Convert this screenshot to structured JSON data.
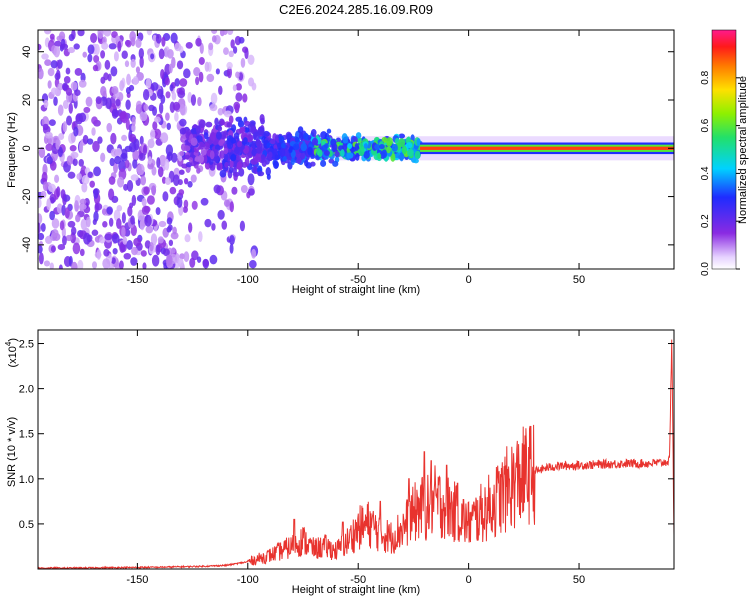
{
  "figure": {
    "title": "C2E6.2024.285.16.09.R09"
  },
  "colors": {
    "line": "#e8332e",
    "background": "#ffffff",
    "axis": "#000000"
  },
  "chart_data": [
    {
      "type": "heatmap",
      "xlabel": "Height of straight line (km)",
      "ylabel": "Frequency (Hz)",
      "xlim": [
        -195,
        93
      ],
      "ylim": [
        -50,
        49
      ],
      "x_ticks": [
        -150,
        -100,
        -50,
        0,
        50
      ],
      "y_ticks": [
        -40,
        -20,
        0,
        20,
        40
      ],
      "x_tick_labels": [
        "-150",
        "-100",
        "-50",
        "0",
        "50"
      ],
      "y_tick_labels": [
        "-40",
        "-20",
        "0",
        "20",
        "40"
      ],
      "colorbar": {
        "label": "Normalized spectral amplitude",
        "range": [
          0,
          1
        ],
        "ticks": [
          0.0,
          0.2,
          0.4,
          0.6,
          0.8
        ],
        "tick_labels": [
          "0.0",
          "0.2",
          "0.4",
          "0.6",
          "0.8"
        ],
        "colormap": "rainbow (white-violet-blue-cyan-green-yellow-orange-red-magenta)"
      },
      "regions": [
        {
          "x_range": [
            -195,
            -97
          ],
          "freq_spread": 50,
          "amplitude": 0.05,
          "description": "scattered noise"
        },
        {
          "x_range": [
            -130,
            -22
          ],
          "freq_spread": 8,
          "amplitude": 0.3,
          "description": "transition"
        },
        {
          "x_range": [
            -22,
            93
          ],
          "freq_center": 0,
          "freq_halfwidth": 1.5,
          "amplitude": 0.9,
          "description": "stable carrier"
        }
      ],
      "grid": false
    },
    {
      "type": "line",
      "xlabel": "Height of straight line (km)",
      "ylabel": "SNR (10 * v/v)",
      "y_multiplier_label": "(x10",
      "y_multiplier_exponent": "4",
      "xlim": [
        -195,
        93
      ],
      "ylim": [
        0,
        2.65
      ],
      "x_ticks": [
        -150,
        -100,
        -50,
        0,
        50
      ],
      "y_ticks": [
        0.5,
        1.0,
        1.5,
        2.0,
        2.5
      ],
      "x_tick_labels": [
        "-150",
        "-100",
        "-50",
        "0",
        "50"
      ],
      "y_tick_labels": [
        "0.5",
        "1.0",
        "1.5",
        "2.0",
        "2.5"
      ],
      "series": [
        {
          "color": "#e8332e",
          "x": [
            -195,
            -180,
            -160,
            -140,
            -120,
            -110,
            -100,
            -90,
            -80,
            -75,
            -70,
            -65,
            -60,
            -55,
            -50,
            -45,
            -40,
            -35,
            -30,
            -25,
            -22,
            -20,
            -15,
            -10,
            -5,
            0,
            5,
            10,
            15,
            20,
            25,
            30,
            35,
            40,
            50,
            60,
            70,
            80,
            88,
            91,
            92,
            93
          ],
          "values": [
            0.01,
            0.01,
            0.015,
            0.02,
            0.03,
            0.04,
            0.08,
            0.15,
            0.25,
            0.32,
            0.22,
            0.25,
            0.2,
            0.3,
            0.45,
            0.5,
            0.4,
            0.35,
            0.45,
            0.6,
            0.7,
            0.65,
            0.75,
            0.7,
            0.6,
            0.5,
            0.6,
            0.7,
            0.82,
            0.95,
            1.03,
            1.08,
            1.12,
            1.14,
            1.15,
            1.16,
            1.17,
            1.17,
            1.18,
            1.2,
            2.6,
            0.35
          ]
        }
      ],
      "peaks": [
        {
          "x": -79,
          "y": 0.55
        },
        {
          "x": -57,
          "y": 0.52
        },
        {
          "x": -40,
          "y": 0.75
        },
        {
          "x": -27,
          "y": 1.0
        },
        {
          "x": -20,
          "y": 1.3
        },
        {
          "x": -17,
          "y": 1.2
        },
        {
          "x": -10,
          "y": 1.15
        },
        {
          "x": -5,
          "y": 0.95
        }
      ],
      "grid": false
    }
  ]
}
